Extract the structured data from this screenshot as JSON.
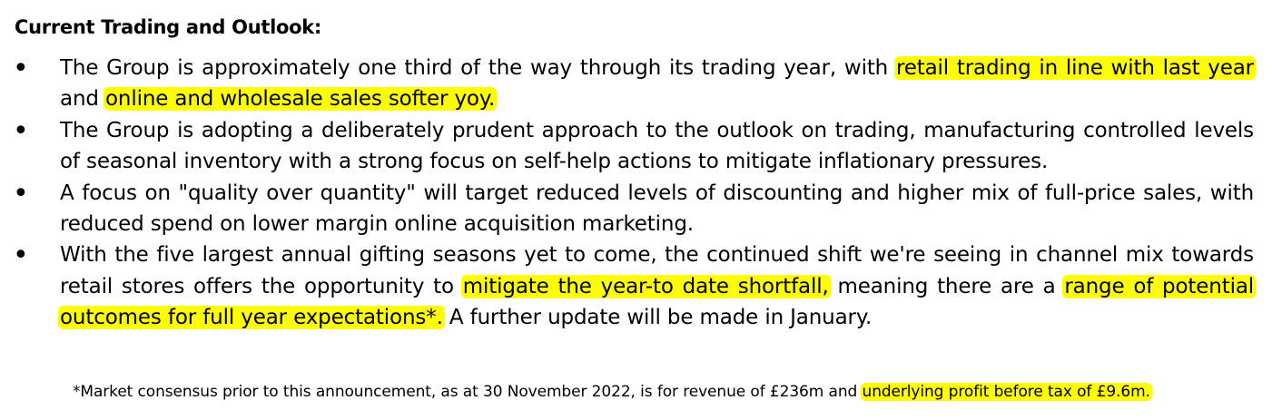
{
  "heading": "Current Trading and Outlook:",
  "bullets": [
    {
      "segments": [
        {
          "text": "The Group is approximately one third of the way through its trading year, with ",
          "highlight": false
        },
        {
          "text": "retail trading in line with last year",
          "highlight": true
        },
        {
          "text": " and ",
          "highlight": false
        },
        {
          "text": "online and wholesale sales softer yoy.",
          "highlight": true
        }
      ]
    },
    {
      "segments": [
        {
          "text": "The Group is adopting a deliberately prudent approach to the outlook on trading, manufacturing controlled levels of seasonal inventory with a strong focus on self-help actions to mitigate inflationary pressures.",
          "highlight": false
        }
      ]
    },
    {
      "segments": [
        {
          "text": "A focus on \"quality over quantity\" will target reduced levels of discounting and higher mix of full-price sales, with reduced spend on lower margin online acquisition marketing.",
          "highlight": false
        }
      ]
    },
    {
      "segments": [
        {
          "text": "With the five largest annual gifting seasons yet to come, the continued shift we're seeing in channel mix towards retail stores offers the opportunity to ",
          "highlight": false
        },
        {
          "text": "mitigate the year-to date shortfall,",
          "highlight": true
        },
        {
          "text": " meaning there are a ",
          "highlight": false
        },
        {
          "text": "range of potential outcomes for full year expectations*.",
          "highlight": true
        },
        {
          "text": " A further update will be made in January.",
          "highlight": false
        }
      ]
    }
  ],
  "footnote": {
    "segments": [
      {
        "text": "*Market consensus prior to this announcement, as at 30 November 2022, is for revenue of £236m and ",
        "highlight": false
      },
      {
        "text": "underlying profit before tax of £9.6m.",
        "highlight": true
      }
    ]
  },
  "bullet_symbol": "•",
  "highlight_color": "#fefe00"
}
